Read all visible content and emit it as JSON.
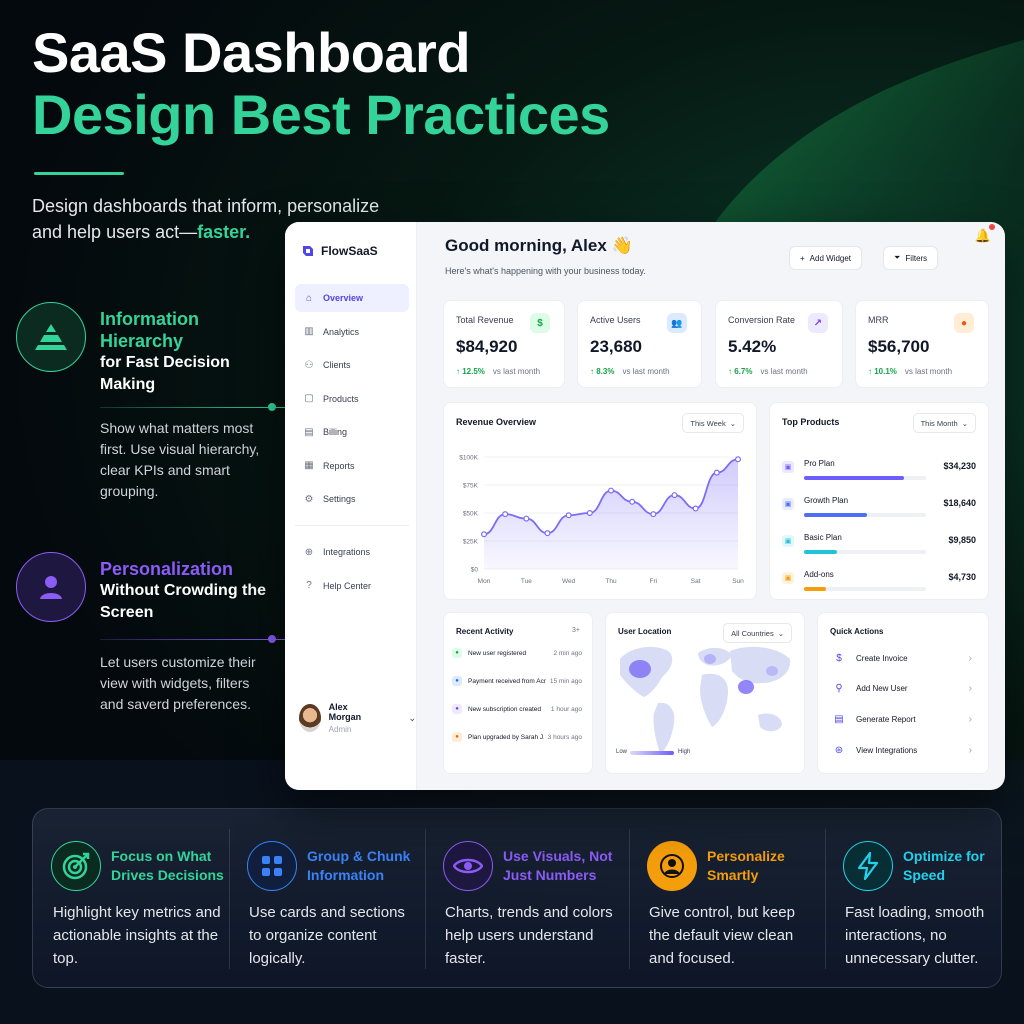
{
  "hero": {
    "title_line1": "SaaS Dashboard",
    "title_line2": "Design Best Practices",
    "subtitle_pre": "Design dashboards that inform, personalize and help users act—",
    "subtitle_accent": "faster."
  },
  "features": [
    {
      "title_highlight": "Information Hierarchy",
      "title_rest": "for Fast Decision Making",
      "description": "Show what matters most first. Use visual hierarchy, clear KPIs and smart grouping.",
      "color": "#34d399",
      "icon": "pyramid-icon"
    },
    {
      "title_highlight": "Personalization",
      "title_rest": "Without Crowding the Screen",
      "description": "Let users customize their view with widgets, filters and saverd preferences.",
      "color": "#8b5cf6",
      "icon": "user-icon"
    }
  ],
  "dashboard": {
    "brand": "FlowSaaS",
    "nav": [
      {
        "label": "Overview",
        "icon": "home-icon",
        "active": true
      },
      {
        "label": "Analytics",
        "icon": "bar-chart-icon"
      },
      {
        "label": "Clients",
        "icon": "users-icon"
      },
      {
        "label": "Products",
        "icon": "box-icon"
      },
      {
        "label": "Billing",
        "icon": "receipt-icon"
      },
      {
        "label": "Reports",
        "icon": "report-icon"
      },
      {
        "label": "Settings",
        "icon": "gear-icon"
      }
    ],
    "nav_secondary": [
      {
        "label": "Integrations",
        "icon": "globe-icon"
      },
      {
        "label": "Help Center",
        "icon": "help-icon"
      }
    ],
    "user": {
      "name": "Alex Morgan",
      "role": "Admin"
    },
    "greeting": "Good morning, Alex 👋",
    "greeting_sub": "Here's what's happening with your business today.",
    "add_widget_label": "Add Widget",
    "filters_label": "Filters",
    "kpis": [
      {
        "label": "Total Revenue",
        "value": "$84,920",
        "change": "↑ 12.5%",
        "vs": "vs last month",
        "icon_color": "#16a34a",
        "icon_bg": "#dcfce7",
        "icon": "$"
      },
      {
        "label": "Active Users",
        "value": "23,680",
        "change": "↑ 8.3%",
        "vs": "vs last month",
        "icon_color": "#2563eb",
        "icon_bg": "#dbeafe",
        "icon": "👥"
      },
      {
        "label": "Conversion Rate",
        "value": "5.42%",
        "change": "↑ 6.7%",
        "vs": "vs last month",
        "icon_color": "#7c3aed",
        "icon_bg": "#ede9fe",
        "icon": "↗"
      },
      {
        "label": "MRR",
        "value": "$56,700",
        "change": "↑ 10.1%",
        "vs": "vs last month",
        "icon_color": "#ea580c",
        "icon_bg": "#ffedd5",
        "icon": "●"
      }
    ],
    "revenue": {
      "title": "Revenue Overview",
      "range": "This Week"
    },
    "top_products": {
      "title": "Top Products",
      "range": "This Month",
      "items": [
        {
          "name": "Pro Plan",
          "value": "$34,230",
          "share": 0.82,
          "color": "#6d5dfc"
        },
        {
          "name": "Growth Plan",
          "value": "$18,640",
          "share": 0.52,
          "color": "#4f6df5"
        },
        {
          "name": "Basic Plan",
          "value": "$9,850",
          "share": 0.27,
          "color": "#22c3d6"
        },
        {
          "name": "Add-ons",
          "value": "$4,730",
          "share": 0.18,
          "color": "#f59e0b"
        }
      ]
    },
    "recent_activity": {
      "title": "Recent Activity",
      "more": "3+",
      "items": [
        {
          "text": "New user registered",
          "time": "2 min ago",
          "color": "#16a34a",
          "bg": "#dcfce7"
        },
        {
          "text": "Payment received from Acme Inc.",
          "time": "15 min ago",
          "color": "#2563eb",
          "bg": "#dbeafe"
        },
        {
          "text": "New subscription created",
          "time": "1 hour ago",
          "color": "#7c3aed",
          "bg": "#ede9fe"
        },
        {
          "text": "Plan upgraded by Sarah J.",
          "time": "3 hours ago",
          "color": "#ea580c",
          "bg": "#ffedd5"
        }
      ]
    },
    "user_location": {
      "title": "User Location",
      "filter": "All Countries",
      "legend_low": "Low",
      "legend_high": "High"
    },
    "quick_actions": {
      "title": "Quick Actions",
      "items": [
        {
          "label": "Create Invoice",
          "icon": "dollar-icon"
        },
        {
          "label": "Add New User",
          "icon": "add-user-icon"
        },
        {
          "label": "Generate Report",
          "icon": "report-icon"
        },
        {
          "label": "View Integrations",
          "icon": "integrations-icon"
        }
      ]
    }
  },
  "chart_data": {
    "type": "area",
    "title": "Revenue Overview",
    "categories": [
      "Mon",
      "Tue",
      "Wed",
      "Thu",
      "Fri",
      "Sat",
      "Sun"
    ],
    "x": [
      0,
      0.5,
      1,
      1.5,
      2,
      2.5,
      3,
      3.5,
      4,
      4.5,
      5,
      5.5,
      6
    ],
    "values": [
      31000,
      49000,
      45000,
      32000,
      48000,
      50000,
      70000,
      60000,
      49000,
      66000,
      54000,
      86000,
      98000
    ],
    "y_ticks": [
      "$0",
      "$25K",
      "$50K",
      "$75K",
      "$100K"
    ],
    "ylim": [
      0,
      100000
    ],
    "grid": true,
    "color": "#7c6cf6"
  },
  "bottom_tips": [
    {
      "title": "Focus on What Drives Decisions",
      "description": "Highlight key metrics and actionable insights at the top.",
      "color": "#34d399",
      "icon": "target-icon"
    },
    {
      "title": "Group & Chunk Information",
      "description": "Use cards and sections to organize content logically.",
      "color": "#3b82f6",
      "icon": "grid-icon"
    },
    {
      "title": "Use Visuals, Not Just Numbers",
      "description": "Charts, trends and colors help users understand faster.",
      "color": "#8b5cf6",
      "icon": "eye-icon"
    },
    {
      "title": "Personalize Smartly",
      "description": "Give control, but keep the default view clean and focused.",
      "color": "#f59e0b",
      "icon": "user-icon"
    },
    {
      "title": "Optimize for Speed",
      "description": "Fast loading, smooth interactions, no unnecessary clutter.",
      "color": "#22d3ee",
      "icon": "lightning-icon"
    }
  ]
}
